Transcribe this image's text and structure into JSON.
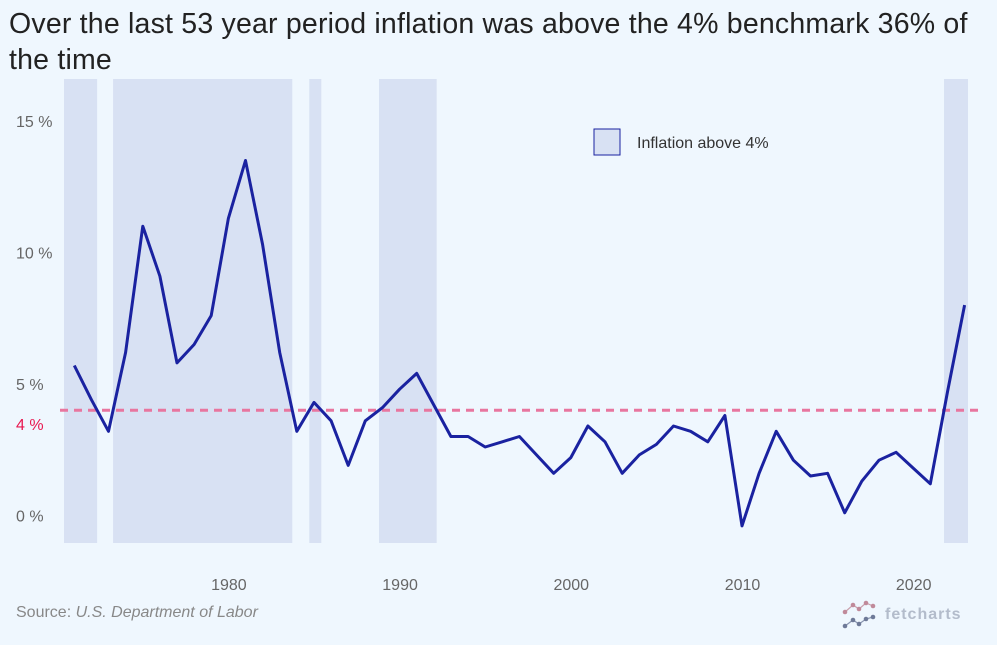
{
  "title": "Over the last 53 year period inflation was above the 4% benchmark 36% of the time",
  "source": {
    "prefix": "Source: ",
    "name": "U.S. Department of Labor"
  },
  "logo": {
    "text": "fetcharts"
  },
  "colors": {
    "line": "#1a22a0",
    "band": "#d8e1f3",
    "benchmark": "#e8769f",
    "benchmark_label": "#e8174f",
    "background": "#eff7fe"
  },
  "chart_data": {
    "type": "line",
    "title": "Over the last 53 year period inflation was above the 4% benchmark 36% of the time",
    "xlabel": "",
    "ylabel": "",
    "series": [
      {
        "name": "Inflation",
        "x": [
          1970,
          1971,
          1972,
          1973,
          1974,
          1975,
          1976,
          1977,
          1978,
          1979,
          1980,
          1981,
          1982,
          1983,
          1984,
          1985,
          1986,
          1987,
          1988,
          1989,
          1990,
          1991,
          1992,
          1993,
          1994,
          1995,
          1996,
          1997,
          1998,
          1999,
          2000,
          2001,
          2002,
          2003,
          2004,
          2005,
          2006,
          2007,
          2008,
          2009,
          2010,
          2011,
          2012,
          2013,
          2014,
          2015,
          2016,
          2017,
          2018,
          2019,
          2020,
          2021,
          2022
        ],
        "values": [
          5.7,
          4.4,
          3.2,
          6.2,
          11.0,
          9.1,
          5.8,
          6.5,
          7.6,
          11.3,
          13.5,
          10.3,
          6.2,
          3.2,
          4.3,
          3.6,
          1.9,
          3.6,
          4.1,
          4.8,
          5.4,
          4.2,
          3.0,
          3.0,
          2.6,
          2.8,
          3.0,
          2.3,
          1.6,
          2.2,
          3.4,
          2.8,
          1.6,
          2.3,
          2.7,
          3.4,
          3.2,
          2.8,
          3.8,
          -0.4,
          1.6,
          3.2,
          2.1,
          1.5,
          1.6,
          0.1,
          1.3,
          2.1,
          2.4,
          1.8,
          1.2,
          4.7,
          8.0
        ]
      }
    ],
    "benchmark": {
      "value": 4,
      "label": "4 %"
    },
    "legend": {
      "label": "Inflation above 4%",
      "placement": "top-right"
    },
    "x_ticks": [
      "1980",
      "1990",
      "2000",
      "2010",
      "2020"
    ],
    "x_tick_values": [
      1980,
      1990,
      2000,
      2010,
      2020
    ],
    "y_ticks": [
      "0 %",
      "5 %",
      "10 %",
      "15 %"
    ],
    "y_tick_values": [
      0,
      5,
      10,
      15
    ],
    "xlim": [
      1970.4,
      2023.2
    ],
    "ylim": [
      -1.05,
      16.6
    ],
    "grid": false
  }
}
